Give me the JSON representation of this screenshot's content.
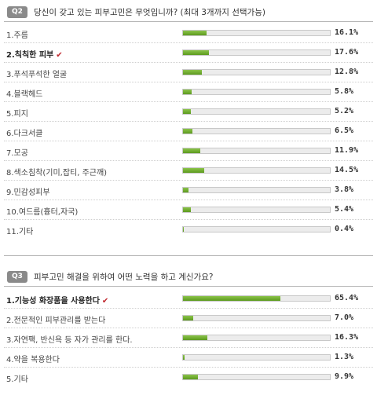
{
  "q2": {
    "badge": "Q2",
    "title": "당신이 갖고 있는 피부고민은 무엇입니까? (최대 3개까지 선택가능)"
  },
  "q3": {
    "badge": "Q3",
    "title": "피부고민 해결을 위하여 어떤 노력을 하고 계신가요?"
  },
  "colors": {
    "bar": "#7cb342",
    "badge": "#8a8a8a",
    "check": "#c0272d"
  },
  "check_icon": "check-icon",
  "chart_data": [
    {
      "type": "bar",
      "orientation": "horizontal",
      "categories": [
        "1.주름",
        "2.칙칙한 피부",
        "3.푸석푸석한 얼굴",
        "4.블랙헤드",
        "5.피지",
        "6.다크서클",
        "7.모공",
        "8.색소침착(기미,잡티, 주근깨)",
        "9.민감성피부",
        "10.여드름(흉터,자국)",
        "11.기타"
      ],
      "values": [
        16.1,
        17.6,
        12.8,
        5.8,
        5.2,
        6.5,
        11.9,
        14.5,
        3.8,
        5.4,
        0.4
      ],
      "value_labels": [
        "16.1%",
        "17.6%",
        "12.8%",
        "5.8%",
        "5.2%",
        "6.5%",
        "11.9%",
        "14.5%",
        "3.8%",
        "5.4%",
        "0.4%"
      ],
      "selected_index": 1,
      "xlim": [
        0,
        100
      ]
    },
    {
      "type": "bar",
      "orientation": "horizontal",
      "categories": [
        "1.기능성 화장품을 사용한다",
        "2.전문적인 피부관리를 받는다",
        "3.자연팩, 반신욕 등 자가 관리를 한다.",
        "4.약을 복용한다",
        "5.기타"
      ],
      "values": [
        65.4,
        7.0,
        16.3,
        1.3,
        9.9
      ],
      "value_labels": [
        "65.4%",
        "7.0%",
        "16.3%",
        "1.3%",
        "9.9%"
      ],
      "selected_index": 0,
      "xlim": [
        0,
        100
      ]
    }
  ]
}
